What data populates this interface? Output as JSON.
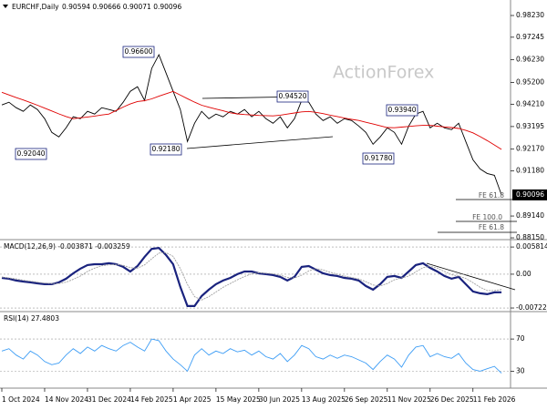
{
  "chart_data": [
    {
      "type": "line",
      "title": "EURCHF,Daily",
      "subtitle": "0.90594 0.90666 0.90071 0.90096",
      "watermark": "ActionForex",
      "ylim": [
        0.8811,
        0.9885
      ],
      "yticks": [
        {
          "value": 0.9823,
          "label": "0.98230"
        },
        0.97245,
        {
          "value": 0.9623,
          "label": "0.96230"
        },
        {
          "value": 0.952,
          "label": "0.95200"
        },
        {
          "value": 0.9421,
          "label": "0.94210"
        },
        0.93195,
        {
          "value": 0.9217,
          "label": "0.92170"
        },
        {
          "value": 0.9118,
          "label": "0.91180"
        },
        {
          "value": 0.8914,
          "label": "0.89140"
        },
        {
          "value": 0.8815,
          "label": "0.88150"
        }
      ],
      "last_price": 0.90096,
      "annotations": [
        "0.96600",
        "0.94520",
        "0.92180",
        "0.93940",
        "0.91780",
        "0.92040",
        "FE 61.8",
        "FE 100.0",
        "FE 61.8"
      ],
      "series": [
        {
          "color": "#000000",
          "values": [
            0.94173,
            0.94297,
            0.94049,
            0.93883,
            0.94173,
            0.93966,
            0.93552,
            0.92931,
            0.92724,
            0.93138,
            0.93635,
            0.93552,
            0.93883,
            0.93759,
            0.94049,
            0.93966,
            0.93883,
            0.94297,
            0.94794,
            0.95001,
            0.9438,
            0.95829,
            0.9645,
            0.95622,
            0.94794,
            0.93966,
            0.92517,
            0.93345,
            0.93883,
            0.93552,
            0.93759,
            0.93635,
            0.93883,
            0.93759,
            0.93966,
            0.93635,
            0.93883,
            0.93552,
            0.93345,
            0.93635,
            0.93138,
            0.93552,
            0.9438,
            0.94297,
            0.93759,
            0.93469,
            0.93635,
            0.93345,
            0.93552,
            0.93469,
            0.93221,
            0.92931,
            0.92393,
            0.92724,
            0.93138,
            0.92931,
            0.92393,
            0.93221,
            0.93759,
            0.93883,
            0.93138,
            0.93345,
            0.93138,
            0.93055,
            0.93345,
            0.92517,
            0.91689,
            0.91275,
            0.91068,
            0.90985,
            0.90096
          ]
        },
        {
          "color": "#e00000",
          "values": [
            0.9475,
            0.9463,
            0.9451,
            0.944,
            0.9428,
            0.9416,
            0.9403,
            0.939,
            0.9377,
            0.9365,
            0.9355,
            0.9359,
            0.9363,
            0.9367,
            0.9372,
            0.9376,
            0.9392,
            0.9408,
            0.9422,
            0.9433,
            0.9437,
            0.9445,
            0.9457,
            0.9468,
            0.9479,
            0.9462,
            0.9446,
            0.943,
            0.9416,
            0.9407,
            0.9399,
            0.9391,
            0.9382,
            0.9377,
            0.9374,
            0.9372,
            0.937,
            0.9369,
            0.9368,
            0.9371,
            0.9376,
            0.9381,
            0.9386,
            0.9388,
            0.9384,
            0.9378,
            0.9371,
            0.9365,
            0.9358,
            0.9352,
            0.9347,
            0.9339,
            0.9331,
            0.9323,
            0.9315,
            0.9314,
            0.9317,
            0.932,
            0.9323,
            0.9325,
            0.9325,
            0.9321,
            0.9318,
            0.9315,
            0.9311,
            0.9302,
            0.9291,
            0.9274,
            0.9256,
            0.9236,
            0.9216
          ]
        }
      ]
    },
    {
      "type": "line",
      "title": "MACD(12,26,9) -0.003871 -0.003259",
      "ylim": [
        -0.0078,
        0.007
      ],
      "yticks": [
        0.005814,
        {
          "value": 0,
          "label": "0.00"
        },
        -0.007222
      ],
      "series": [
        {
          "color": "#1a237e",
          "values": [
            -0.00078,
            -0.00097,
            -0.00136,
            -0.00156,
            -0.00175,
            -0.00195,
            -0.00214,
            -0.00214,
            -0.00175,
            -0.00097,
            0.00019,
            0.00117,
            0.00195,
            0.00214,
            0.00214,
            0.00234,
            0.00214,
            0.00156,
            0.00058,
            0.00175,
            0.0037,
            0.0054,
            0.0056,
            0.00409,
            0.00214,
            -0.00272,
            -0.00681,
            -0.00681,
            -0.00467,
            -0.00331,
            -0.00214,
            -0.00136,
            -0.00078,
            0,
            0.00058,
            0.00058,
            0.00019,
            0,
            -0.00019,
            -0.00058,
            -0.00136,
            -0.00058,
            0.00156,
            0.00175,
            0.00097,
            0.00019,
            -0.00019,
            -0.00039,
            -0.00078,
            -0.00097,
            -0.00136,
            -0.00253,
            -0.00331,
            -0.00214,
            -0.00058,
            -0.00039,
            -0.00078,
            0.00058,
            0.00195,
            0.00234,
            0.00136,
            0.00058,
            -0.00039,
            -0.00097,
            -0.00058,
            -0.00214,
            -0.0037,
            -0.00409,
            -0.00428,
            -0.00389,
            -0.003871
          ]
        },
        {
          "color": "#a0a0a0",
          "values": [
            -0.0006,
            -0.0008,
            -0.001,
            -0.0013,
            -0.0015,
            -0.0017,
            -0.0019,
            -0.002,
            -0.002,
            -0.0017,
            -0.0011,
            -0.0004,
            0.0006,
            0.0013,
            0.0018,
            0.002,
            0.0021,
            0.0019,
            0.0014,
            0.0013,
            0.002,
            0.0033,
            0.0045,
            0.0046,
            0.0038,
            0.0012,
            -0.0022,
            -0.0048,
            -0.0055,
            -0.0048,
            -0.0038,
            -0.0028,
            -0.002,
            -0.0012,
            -0.0005,
            0.0001,
            0.0003,
            0.0002,
            0.0001,
            -0.0002,
            -0.0007,
            -0.0008,
            -0.0002,
            0.0007,
            0.0012,
            0.0009,
            0.0004,
            0,
            -0.0004,
            -0.0007,
            -0.001,
            -0.0016,
            -0.0023,
            -0.0025,
            -0.002,
            -0.0012,
            -0.0008,
            -0.0004,
            0.0005,
            0.0014,
            0.0017,
            0.0013,
            0.0006,
            -0.0001,
            -0.0004,
            -0.0009,
            -0.0018,
            -0.0028,
            -0.0035,
            -0.0035,
            -0.003259
          ]
        }
      ]
    },
    {
      "type": "line",
      "title": "RSI(14) 27.4803",
      "ylim": [
        10,
        103
      ],
      "yticks": [
        70,
        30
      ],
      "categories": [
        "1 Oct 2024",
        null,
        null,
        null,
        null,
        null,
        "14 Nov 2024",
        null,
        null,
        null,
        null,
        null,
        "31 Dec 2024",
        null,
        null,
        null,
        null,
        null,
        "14 Feb 2025",
        null,
        null,
        null,
        null,
        null,
        "1 Apr 2025",
        null,
        null,
        null,
        null,
        null,
        "15 May 2025",
        null,
        null,
        null,
        null,
        null,
        "30 Jun 2025",
        null,
        null,
        null,
        null,
        null,
        "13 Aug 2025",
        null,
        null,
        null,
        null,
        null,
        "26 Sep 2025",
        null,
        null,
        null,
        null,
        null,
        "11 Nov 2025",
        null,
        null,
        null,
        null,
        null,
        "26 Dec 2025",
        null,
        null,
        null,
        null,
        null,
        "11 Feb 2026",
        null,
        null,
        null,
        null
      ],
      "series": [
        {
          "color": "#3d9df5",
          "values": [
            55,
            58,
            50,
            45,
            55,
            50,
            42,
            38,
            40,
            50,
            58,
            52,
            60,
            55,
            62,
            58,
            55,
            62,
            66,
            60,
            55,
            70,
            68,
            55,
            45,
            38,
            30,
            50,
            58,
            50,
            55,
            52,
            58,
            54,
            56,
            50,
            55,
            48,
            45,
            52,
            42,
            50,
            62,
            58,
            48,
            45,
            50,
            46,
            50,
            48,
            44,
            40,
            32,
            42,
            50,
            45,
            35,
            50,
            60,
            62,
            48,
            52,
            48,
            46,
            52,
            40,
            32,
            30,
            33,
            36,
            27.4803
          ]
        }
      ]
    }
  ]
}
